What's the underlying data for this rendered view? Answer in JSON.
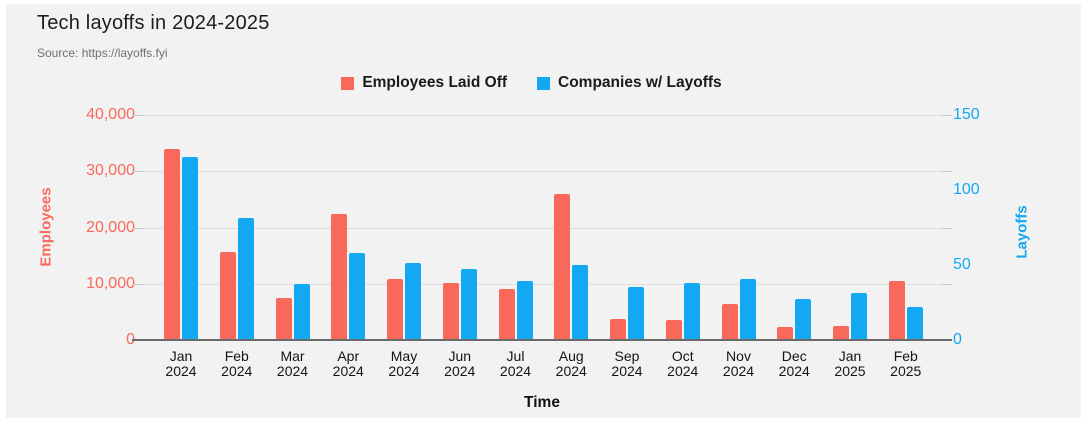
{
  "page": {
    "background": "#ffffff",
    "panel_background": "#f2f2f2"
  },
  "header": {
    "title": "Tech layoffs in 2024-2025",
    "source": "Source: https://layoffs.fyi"
  },
  "legend": {
    "items": [
      {
        "label": "Employees Laid Off",
        "color": "#f9695b"
      },
      {
        "label": "Companies w/ Layoffs",
        "color": "#13a9f2"
      }
    ]
  },
  "axes": {
    "left": {
      "title": "Employees",
      "color": "#f9695b",
      "ticks": [
        "40,000",
        "30,000",
        "20,000",
        "10,000",
        "0"
      ]
    },
    "right": {
      "title": "Layoffs",
      "color": "#13a9f2",
      "ticks": [
        "150",
        "100",
        "50",
        "0"
      ]
    },
    "x": {
      "title": "Time"
    }
  },
  "chart_data": {
    "type": "bar",
    "title": "Tech layoffs in 2024-2025",
    "source": "Source: https://layoffs.fyi",
    "categories": [
      "Jan 2024",
      "Feb 2024",
      "Mar 2024",
      "Apr 2024",
      "May 2024",
      "Jun 2024",
      "Jul 2024",
      "Aug 2024",
      "Sep 2024",
      "Oct 2024",
      "Nov 2024",
      "Dec 2024",
      "Jan 2025",
      "Feb 2025"
    ],
    "series": [
      {
        "name": "Employees Laid Off",
        "axis": "left",
        "color": "#f9695b",
        "values": [
          34000,
          15700,
          7400,
          22400,
          10800,
          10100,
          9000,
          26000,
          3800,
          3600,
          6400,
          2300,
          2400,
          10500
        ]
      },
      {
        "name": "Companies w/ Layoffs",
        "axis": "right",
        "color": "#13a9f2",
        "values": [
          122,
          81,
          37,
          58,
          51,
          47,
          39,
          50,
          35,
          38,
          41,
          27,
          31,
          22
        ]
      }
    ],
    "left_axis": {
      "label": "Employees",
      "range": [
        0,
        40000
      ],
      "tick_values": [
        0,
        10000,
        20000,
        30000,
        40000
      ]
    },
    "right_axis": {
      "label": "Layoffs",
      "range": [
        0,
        150
      ],
      "tick_values": [
        0,
        50,
        100,
        150
      ]
    },
    "xlabel": "Time",
    "legend_position": "top-center",
    "grid": true
  }
}
